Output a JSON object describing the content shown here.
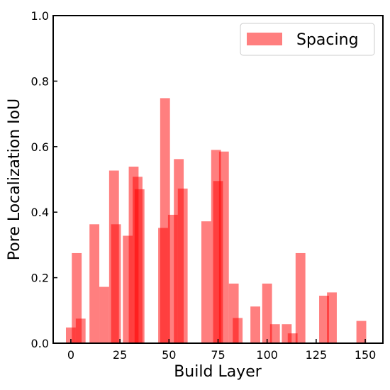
{
  "chart_data": {
    "type": "bar",
    "xlabel": "Build Layer",
    "ylabel": "Pore Localization IoU",
    "xlim": [
      -9,
      159
    ],
    "ylim": [
      0,
      1
    ],
    "xticks": [
      0,
      25,
      50,
      75,
      100,
      125,
      150
    ],
    "yticks": [
      "0.0",
      "0.2",
      "0.4",
      "0.6",
      "0.8",
      "1.0"
    ],
    "yticks_values": [
      0,
      0.2,
      0.4,
      0.6,
      0.8,
      1.0
    ],
    "grid": false,
    "legend_position": "top-right",
    "bar_width": 5,
    "series": [
      {
        "name": "Spacing",
        "color": "#ff0000",
        "opacity": 0.5,
        "x": [
          0,
          3,
          5,
          12,
          17,
          22,
          23,
          29,
          32,
          34,
          35,
          47,
          48,
          52,
          55,
          57,
          69,
          74,
          75,
          78,
          83,
          85,
          94,
          100,
          104,
          110,
          113,
          117,
          129,
          133,
          148
        ],
        "values": [
          0.048,
          0.275,
          0.075,
          0.363,
          0.172,
          0.527,
          0.363,
          0.328,
          0.539,
          0.508,
          0.47,
          0.352,
          0.748,
          0.392,
          0.562,
          0.472,
          0.372,
          0.59,
          0.495,
          0.585,
          0.182,
          0.077,
          0.112,
          0.182,
          0.058,
          0.058,
          0.03,
          0.275,
          0.145,
          0.155,
          0.068
        ]
      }
    ]
  }
}
